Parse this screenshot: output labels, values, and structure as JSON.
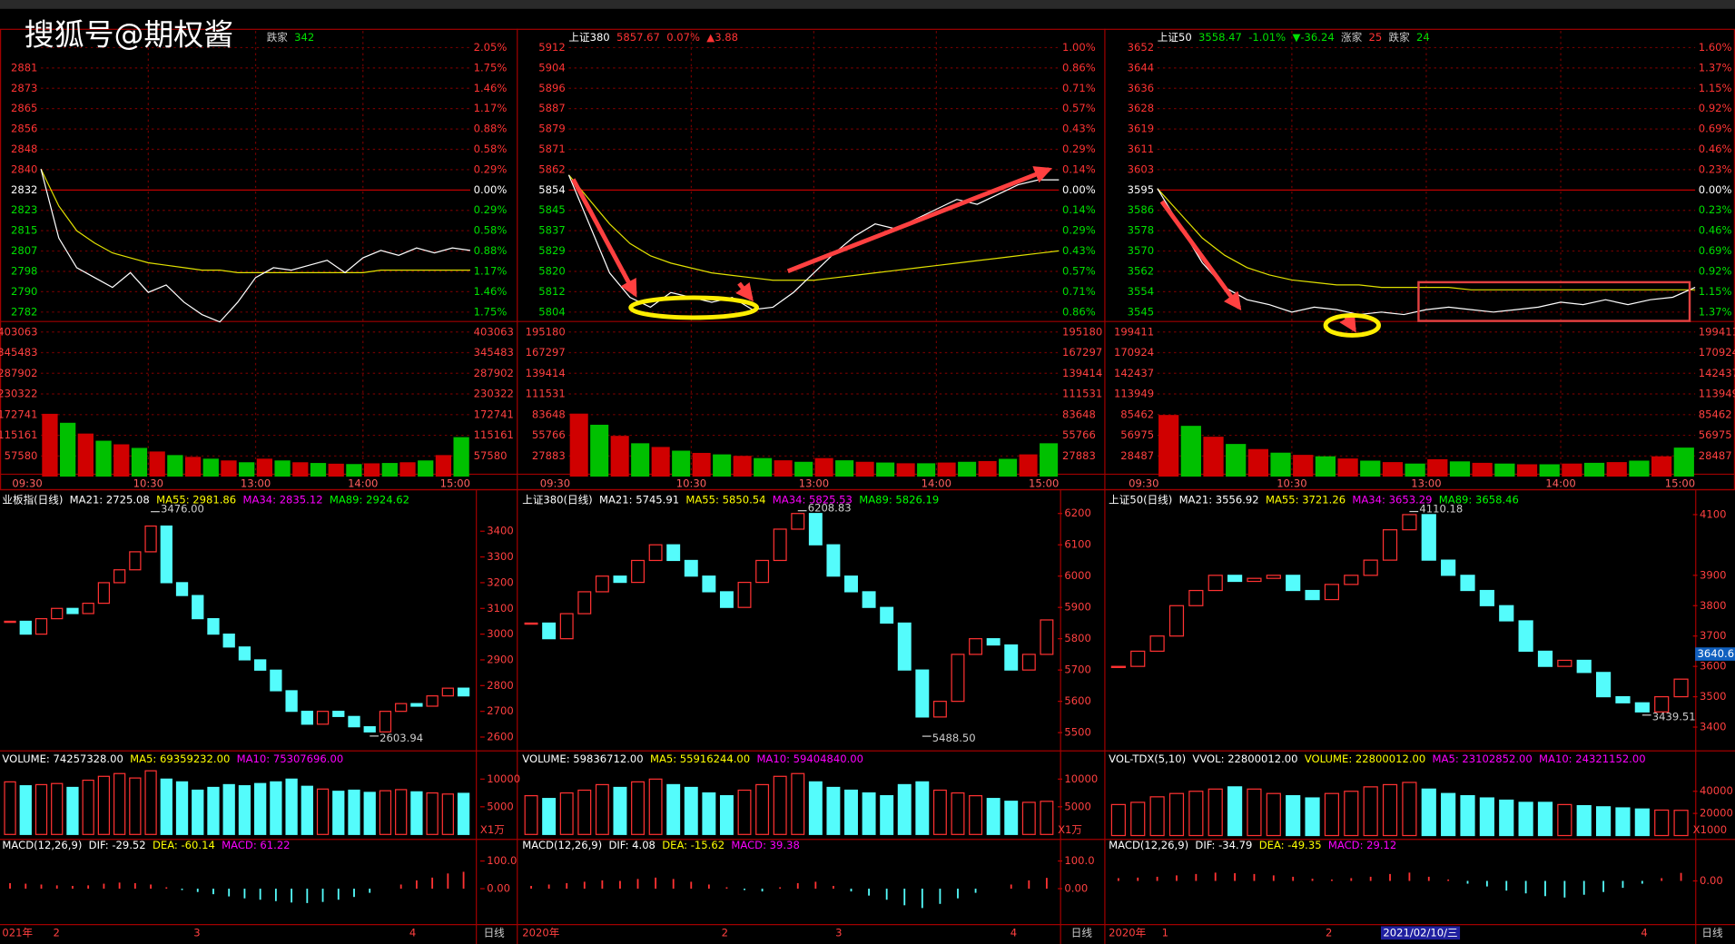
{
  "watermark": "搜狐号@期权酱",
  "intraday": [
    {
      "header": [
        {
          "text": "跌家",
          "color": "#cccccc"
        },
        {
          "text": "342",
          "color": "#00e000"
        }
      ],
      "price_ticks": [
        2881,
        2873,
        2865,
        2856,
        2848,
        2840,
        2832,
        2823,
        2815,
        2807,
        2798,
        2790,
        2782
      ],
      "pct_ticks": [
        "2.05%",
        "1.75%",
        "1.46%",
        "1.17%",
        "0.88%",
        "0.58%",
        "0.29%",
        "0.00%",
        "0.29%",
        "0.58%",
        "0.88%",
        "1.17%",
        "1.46%",
        "1.75%"
      ],
      "vol_ticks": [
        403063,
        345483,
        287902,
        230322,
        172741,
        115161,
        57580
      ],
      "times": [
        "09:30",
        "10:30",
        "13:00",
        "14:00",
        "15:00"
      ],
      "price": [
        2840,
        2812,
        2800,
        2796,
        2792,
        2798,
        2790,
        2793,
        2786,
        2781,
        2778,
        2786,
        2796,
        2800,
        2799,
        2801,
        2803,
        2798,
        2804,
        2807,
        2805,
        2808,
        2806,
        2808,
        2807
      ],
      "avg": [
        2840,
        2825,
        2815,
        2810,
        2806,
        2804,
        2802,
        2801,
        2800,
        2799,
        2799,
        2798,
        2798,
        2798,
        2798,
        2798,
        2798,
        2798,
        2798,
        2799,
        2799,
        2799,
        2799,
        2799,
        2799
      ],
      "volume": [
        175000,
        150000,
        120000,
        100000,
        90000,
        80000,
        70000,
        60000,
        55000,
        50000,
        45000,
        40000,
        50000,
        45000,
        40000,
        38000,
        36000,
        35000,
        37000,
        38000,
        40000,
        45000,
        60000,
        110000
      ]
    },
    {
      "header": [
        {
          "text": "上证380",
          "color": "#ffffff"
        },
        {
          "text": "5857.67",
          "color": "#ff3333"
        },
        {
          "text": "0.07%",
          "color": "#ff3333"
        },
        {
          "text": "▲3.88",
          "color": "#ff3333"
        }
      ],
      "price_ticks": [
        5912,
        5904,
        5896,
        5887,
        5879,
        5871,
        5862,
        5854,
        5845,
        5837,
        5829,
        5820,
        5812,
        5804
      ],
      "pct_ticks": [
        "1.00%",
        "0.86%",
        "0.71%",
        "0.57%",
        "0.43%",
        "0.29%",
        "0.14%",
        "0.00%",
        "0.14%",
        "0.29%",
        "0.43%",
        "0.57%",
        "0.71%",
        "0.86%"
      ],
      "vol_ticks": [
        195180,
        167297,
        139414,
        111531,
        83648,
        55766,
        27883
      ],
      "times": [
        "09:30",
        "10:30",
        "13:00",
        "14:00",
        "15:00"
      ],
      "price": [
        5860,
        5840,
        5820,
        5810,
        5806,
        5812,
        5810,
        5808,
        5810,
        5805,
        5806,
        5812,
        5820,
        5828,
        5835,
        5840,
        5838,
        5842,
        5846,
        5850,
        5848,
        5852,
        5856,
        5858,
        5858
      ],
      "avg": [
        5860,
        5850,
        5840,
        5832,
        5827,
        5824,
        5822,
        5820,
        5819,
        5818,
        5817,
        5817,
        5817,
        5818,
        5819,
        5820,
        5821,
        5822,
        5823,
        5824,
        5825,
        5826,
        5827,
        5828,
        5829
      ],
      "volume": [
        85000,
        70000,
        55000,
        45000,
        40000,
        35000,
        32000,
        30000,
        28000,
        25000,
        22000,
        20000,
        25000,
        22000,
        20000,
        19000,
        18000,
        18000,
        19000,
        20000,
        21000,
        24000,
        30000,
        45000
      ]
    },
    {
      "header": [
        {
          "text": "上证50",
          "color": "#ffffff"
        },
        {
          "text": "3558.47",
          "color": "#00e000"
        },
        {
          "text": "-1.01%",
          "color": "#00e000"
        },
        {
          "text": "▼-36.24",
          "color": "#00e000"
        },
        {
          "text": "涨家",
          "color": "#cccccc"
        },
        {
          "text": "25",
          "color": "#ff3333"
        },
        {
          "text": "跌家",
          "color": "#cccccc"
        },
        {
          "text": "24",
          "color": "#00e000"
        }
      ],
      "price_ticks": [
        3652,
        3644,
        3636,
        3628,
        3619,
        3611,
        3603,
        3595,
        3586,
        3578,
        3570,
        3562,
        3554,
        3545
      ],
      "pct_ticks": [
        "1.60%",
        "1.37%",
        "1.15%",
        "0.92%",
        "0.69%",
        "0.46%",
        "0.23%",
        "0.00%",
        "0.23%",
        "0.46%",
        "0.69%",
        "0.92%",
        "1.15%",
        "1.37%"
      ],
      "vol_ticks": [
        199411,
        170924,
        142437,
        113949,
        85462,
        56975,
        28487
      ],
      "times": [
        "09:30",
        "10:30",
        "13:00",
        "14:00",
        "15:00"
      ],
      "price": [
        3595,
        3580,
        3565,
        3555,
        3550,
        3548,
        3545,
        3547,
        3546,
        3544,
        3545,
        3544,
        3546,
        3547,
        3546,
        3545,
        3546,
        3547,
        3549,
        3548,
        3550,
        3548,
        3550,
        3551,
        3555
      ],
      "avg": [
        3595,
        3585,
        3575,
        3568,
        3563,
        3560,
        3558,
        3557,
        3556,
        3556,
        3555,
        3555,
        3555,
        3555,
        3554,
        3554,
        3554,
        3554,
        3554,
        3554,
        3554,
        3554,
        3554,
        3554,
        3554
      ],
      "volume": [
        85000,
        70000,
        55000,
        45000,
        38000,
        33000,
        30000,
        28000,
        25000,
        22000,
        20000,
        18000,
        24000,
        21000,
        19000,
        18000,
        17000,
        17000,
        18000,
        19000,
        20000,
        22000,
        28000,
        40000
      ]
    }
  ],
  "daily": [
    {
      "header": [
        {
          "text": "业板指(日线)",
          "color": "#ffffff"
        },
        {
          "text": "MA21: 2725.08",
          "color": "#ffffff"
        },
        {
          "text": "MA55: 2981.86",
          "color": "#ffff00"
        },
        {
          "text": "MA34: 2835.12",
          "color": "#ff00ff"
        },
        {
          "text": "MA89: 2924.62",
          "color": "#00ff00"
        }
      ],
      "price_ticks": [
        3400,
        3300,
        3200,
        3100,
        3000,
        2900,
        2800,
        2700,
        2600
      ],
      "high_note": {
        "value": 3476,
        "label": "3476.00"
      },
      "low_note": {
        "value": 2603.94,
        "label": "2603.94"
      },
      "closes": [
        3050,
        3000,
        3060,
        3100,
        3080,
        3120,
        3200,
        3250,
        3320,
        3420,
        3200,
        3150,
        3060,
        3000,
        2950,
        2900,
        2860,
        2780,
        2700,
        2650,
        2700,
        2680,
        2640,
        2620,
        2700,
        2730,
        2720,
        2760,
        2790,
        2760
      ],
      "vol_header": [
        {
          "text": "VOLUME: 74257328.00",
          "color": "#ffffff"
        },
        {
          "text": "MA5: 69359232.00",
          "color": "#ffff00"
        },
        {
          "text": "MA10: 75307696.00",
          "color": "#ff00ff"
        }
      ],
      "vol_ticks": [
        10000,
        5000
      ],
      "vol_unit": "X1万",
      "volume": [
        9500,
        8800,
        9000,
        9200,
        8500,
        9800,
        10500,
        11000,
        10200,
        11500,
        10000,
        9500,
        8000,
        8500,
        9000,
        8800,
        9200,
        9500,
        10000,
        8700,
        8200,
        7800,
        8000,
        7600,
        7900,
        8100,
        7700,
        7500,
        7300,
        7425
      ],
      "macd_header": [
        {
          "text": "MACD(12,26,9)",
          "color": "#ffffff"
        },
        {
          "text": "DIF: -29.52",
          "color": "#ffffff"
        },
        {
          "text": "DEA: -60.14",
          "color": "#ffff00"
        },
        {
          "text": "MACD: 61.22",
          "color": "#ff00ff"
        }
      ],
      "macd_ticks": [
        {
          "value": 100,
          "label": "100.0"
        },
        {
          "value": 0,
          "label": "0.00"
        }
      ],
      "macd": [
        20,
        18,
        15,
        12,
        10,
        12,
        18,
        22,
        20,
        15,
        5,
        -5,
        -12,
        -20,
        -28,
        -35,
        -40,
        -45,
        -50,
        -52,
        -48,
        -40,
        -30,
        -15,
        0,
        15,
        30,
        40,
        55,
        61
      ],
      "dates": [
        "021年",
        "2",
        "3",
        "4"
      ],
      "period": "日线"
    },
    {
      "header": [
        {
          "text": "上证380(日线)",
          "color": "#ffffff"
        },
        {
          "text": "MA21: 5745.91",
          "color": "#ffffff"
        },
        {
          "text": "MA55: 5850.54",
          "color": "#ffff00"
        },
        {
          "text": "MA34: 5825.53",
          "color": "#ff00ff"
        },
        {
          "text": "MA89: 5826.19",
          "color": "#00ff00"
        }
      ],
      "price_ticks": [
        6200,
        6100,
        6000,
        5900,
        5800,
        5700,
        5600,
        5500
      ],
      "high_note": {
        "value": 6208.83,
        "label": "6208.83"
      },
      "low_note": {
        "value": 5488.5,
        "label": "5488.50"
      },
      "closes": [
        5850,
        5800,
        5880,
        5950,
        6000,
        5980,
        6050,
        6100,
        6050,
        6000,
        5950,
        5900,
        5980,
        6050,
        6150,
        6200,
        6100,
        6000,
        5950,
        5900,
        5850,
        5700,
        5550,
        5600,
        5750,
        5800,
        5780,
        5700,
        5750,
        5860
      ],
      "vol_header": [
        {
          "text": "VOLUME: 59836712.00",
          "color": "#ffffff"
        },
        {
          "text": "MA5: 55916244.00",
          "color": "#ffff00"
        },
        {
          "text": "MA10: 59404840.00",
          "color": "#ff00ff"
        }
      ],
      "vol_ticks": [
        10000,
        5000
      ],
      "vol_unit": "X1万",
      "volume": [
        7000,
        6500,
        7500,
        8000,
        9000,
        8500,
        9500,
        10000,
        9000,
        8500,
        7500,
        7000,
        8000,
        9000,
        10500,
        11000,
        9500,
        8500,
        8000,
        7500,
        7000,
        9000,
        9500,
        8000,
        7500,
        7000,
        6500,
        6000,
        5800,
        5984
      ],
      "macd_header": [
        {
          "text": "MACD(12,26,9)",
          "color": "#ffffff"
        },
        {
          "text": "DIF: 4.08",
          "color": "#ffffff"
        },
        {
          "text": "DEA: -15.62",
          "color": "#ffff00"
        },
        {
          "text": "MACD: 39.38",
          "color": "#ff00ff"
        }
      ],
      "macd_ticks": [
        {
          "value": 100,
          "label": "100.0"
        },
        {
          "value": 0,
          "label": "0.00"
        }
      ],
      "macd": [
        10,
        15,
        20,
        25,
        30,
        28,
        35,
        40,
        35,
        25,
        15,
        5,
        -5,
        -10,
        5,
        20,
        25,
        10,
        -10,
        -25,
        -40,
        -60,
        -70,
        -55,
        -35,
        -15,
        0,
        15,
        30,
        39
      ],
      "dates": [
        "2020年",
        "2",
        "3",
        "4"
      ],
      "period": "日线"
    },
    {
      "header": [
        {
          "text": "上证50(日线)",
          "color": "#ffffff"
        },
        {
          "text": "MA21: 3556.92",
          "color": "#ffffff"
        },
        {
          "text": "MA55: 3721.26",
          "color": "#ffff00"
        },
        {
          "text": "MA34: 3653.29",
          "color": "#ff00ff"
        },
        {
          "text": "MA89: 3658.46",
          "color": "#00ff00"
        }
      ],
      "price_ticks": [
        4100,
        3900,
        3800,
        3700,
        3600,
        3500,
        3400
      ],
      "current_price": 3640.6,
      "high_note": {
        "value": 4110.18,
        "label": "4110.18"
      },
      "low_note": {
        "value": 3439.51,
        "label": "3439.51"
      },
      "closes": [
        3600,
        3650,
        3700,
        3800,
        3850,
        3900,
        3880,
        3890,
        3900,
        3850,
        3820,
        3870,
        3900,
        3950,
        4050,
        4100,
        3950,
        3900,
        3850,
        3800,
        3750,
        3650,
        3600,
        3620,
        3580,
        3500,
        3480,
        3450,
        3500,
        3558
      ],
      "vol_header": [
        {
          "text": "VOL-TDX(5,10)",
          "color": "#ffffff"
        },
        {
          "text": "VVOL: 22800012.00",
          "color": "#ffffff"
        },
        {
          "text": "VOLUME: 22800012.00",
          "color": "#ffff00"
        },
        {
          "text": "MA5: 23102852.00",
          "color": "#ff00ff"
        },
        {
          "text": "MA10: 24321152.00",
          "color": "#ff00ff"
        }
      ],
      "vol_ticks": [
        40000,
        20000
      ],
      "vol_unit": "X1000",
      "volume": [
        28000,
        30000,
        35000,
        38000,
        40000,
        42000,
        44000,
        42000,
        38000,
        36000,
        34000,
        38000,
        40000,
        44000,
        46000,
        48000,
        42000,
        38000,
        36000,
        34000,
        32000,
        30000,
        30000,
        28000,
        27000,
        26000,
        25000,
        24000,
        23000,
        22800
      ],
      "macd_header": [
        {
          "text": "MACD(12,26,9)",
          "color": "#ffffff"
        },
        {
          "text": "DIF: -34.79",
          "color": "#ffffff"
        },
        {
          "text": "DEA: -49.35",
          "color": "#ffff00"
        },
        {
          "text": "MACD: 29.12",
          "color": "#ff00ff"
        }
      ],
      "macd_ticks": [
        {
          "value": 0,
          "label": "0.00"
        }
      ],
      "macd": [
        10,
        12,
        15,
        20,
        25,
        30,
        28,
        25,
        20,
        15,
        8,
        5,
        10,
        15,
        25,
        30,
        15,
        5,
        -10,
        -20,
        -35,
        -45,
        -55,
        -60,
        -50,
        -40,
        -25,
        -10,
        10,
        29
      ],
      "dates": [
        "2020年",
        "1",
        "2",
        "2021/02/10/三",
        "4"
      ],
      "period": "日线"
    }
  ]
}
